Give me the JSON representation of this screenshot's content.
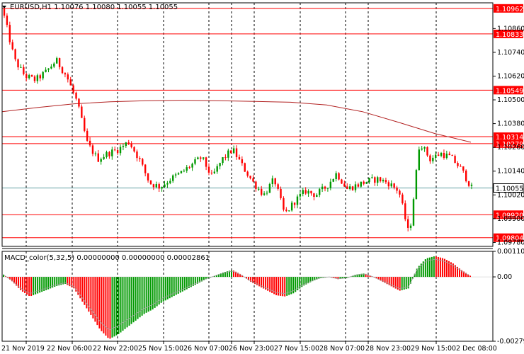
{
  "chart_data": {
    "type": "candlestick",
    "symbol_line": "EURUSD,H1  1.10076 1.10080 1.10055 1.10055",
    "ylim": [
      1.0976,
      1.1099
    ],
    "price_axis_ticks": [
      "1.10860",
      "1.10740",
      "1.10620",
      "1.10500",
      "1.10380",
      "1.10260",
      "1.10140",
      "1.10020",
      "1.09900",
      "1.09780"
    ],
    "horizontal_levels": [
      {
        "value": 1.10962,
        "label": "1.10962",
        "color": "#ff0000"
      },
      {
        "value": 1.10833,
        "label": "1.10833",
        "color": "#ff0000"
      },
      {
        "value": 1.10549,
        "label": "1.10549",
        "color": "#ff0000"
      },
      {
        "value": 1.10314,
        "label": "1.10314",
        "color": "#ff0000"
      },
      {
        "value": 1.10279,
        "label": "1.10279",
        "color": "#ff0000"
      },
      {
        "value": 1.0992,
        "label": "1.09920",
        "color": "#ff0000"
      },
      {
        "value": 1.09804,
        "label": "1.09804",
        "color": "#ff0000"
      }
    ],
    "current_price": {
      "value": 1.10055,
      "label": "1.10055"
    },
    "moving_average": [
      1.1044,
      1.10462,
      1.1048,
      1.1049,
      1.10496,
      1.10498,
      1.10496,
      1.10492,
      1.10488,
      1.10474,
      1.1044,
      1.10386,
      1.1033,
      1.10286
    ],
    "close_path": [
      1.1092,
      1.107,
      1.1062,
      1.106,
      1.1064,
      1.107,
      1.1062,
      1.1049,
      1.1028,
      1.102,
      1.1023,
      1.1025,
      1.1029,
      1.102,
      1.1008,
      1.1006,
      1.101,
      1.1013,
      1.1017,
      1.1021,
      1.1011,
      1.102,
      1.1025,
      1.1016,
      1.1008,
      1.1002,
      1.101,
      1.0992,
      1.0999,
      1.1004,
      1.1002,
      1.1006,
      1.1013,
      1.1005,
      1.1007,
      1.1009,
      1.101,
      1.1008,
      1.1004,
      1.0981,
      1.1029,
      1.102,
      1.1023,
      1.1021,
      1.1015,
      1.10055
    ],
    "macd": {
      "label": "MACD_color(5,32,5) 0.00000000 0.00000000 0.00002861",
      "ylim": [
        -0.002791,
        0.001107
      ],
      "axis_ticks": [
        "0.001107",
        "0.00",
        "-0.002791"
      ],
      "histogram": [
        0.0001,
        -0.0002,
        -0.0006,
        -0.00085,
        -0.0007,
        -0.00055,
        -0.0004,
        -0.0003,
        -0.0005,
        -0.0011,
        -0.0017,
        -0.0023,
        -0.0027,
        -0.0025,
        -0.0022,
        -0.0019,
        -0.0016,
        -0.0014,
        -0.0011,
        -0.0009,
        -0.0007,
        -0.0005,
        -0.0003,
        -0.0001,
        5e-05,
        0.0002,
        0.0003,
        0.0001,
        -0.0002,
        -0.0004,
        -0.0006,
        -0.0008,
        -0.00085,
        -0.0007,
        -0.0004,
        -0.0002,
        -5e-05,
        0.0,
        -0.0001,
        -5e-05,
        0.0001,
        0.00015,
        0.0,
        -0.0002,
        -0.0004,
        -0.0006,
        -0.0005,
        0.0004,
        0.0008,
        0.0009,
        0.0008,
        0.0006,
        0.0003,
        5e-05
      ]
    },
    "time_labels": [
      "21 Nov 2019",
      "22 Nov 06:00",
      "22 Nov 22:00",
      "25 Nov 15:00",
      "26 Nov 07:00",
      "26 Nov 23:00",
      "27 Nov 15:00",
      "28 Nov 07:00",
      "28 Nov 23:00",
      "29 Nov 15:00",
      "2 Dec 08:00"
    ]
  },
  "colors": {
    "bull": "#009900",
    "bear": "#ff0000",
    "level": "#ff0000",
    "ma": "#b22222",
    "grid": "#000000",
    "current_line": "#5f9ea0"
  }
}
